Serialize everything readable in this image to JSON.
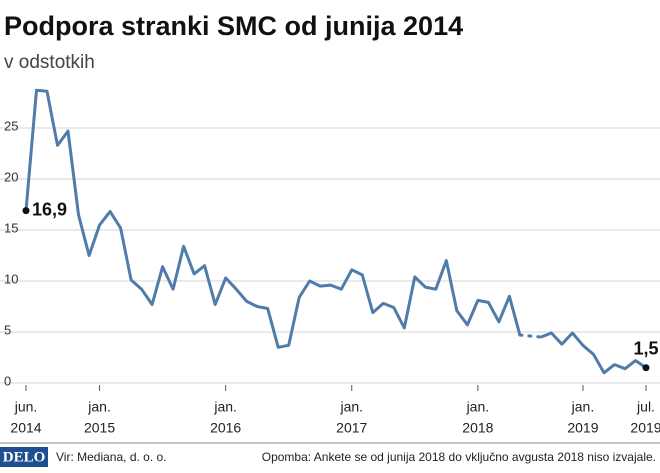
{
  "chart_data": {
    "type": "line",
    "title": "Podpora stranki SMC od junija 2014",
    "subtitle": "v odstotkih",
    "categories": [
      [
        "jun.",
        "2014"
      ],
      null,
      null,
      null,
      null,
      null,
      null,
      [
        "jan.",
        "2015"
      ],
      null,
      null,
      null,
      null,
      null,
      null,
      null,
      null,
      null,
      null,
      null,
      [
        "jan.",
        "2016"
      ],
      null,
      null,
      null,
      null,
      null,
      null,
      null,
      null,
      null,
      null,
      null,
      [
        "jan.",
        "2017"
      ],
      null,
      null,
      null,
      null,
      null,
      null,
      null,
      null,
      null,
      null,
      null,
      [
        "jan.",
        "2018"
      ],
      null,
      null,
      null,
      null,
      null,
      null,
      null,
      null,
      null,
      [
        "jan.",
        "2019"
      ],
      null,
      null,
      null,
      null,
      null,
      [
        "jul.",
        "2019"
      ]
    ],
    "values": [
      16.9,
      28.7,
      28.6,
      23.3,
      24.7,
      16.5,
      12.5,
      15.5,
      16.8,
      15.2,
      10.1,
      9.2,
      7.7,
      11.4,
      9.2,
      13.4,
      10.7,
      11.5,
      7.7,
      10.3,
      9.2,
      8.0,
      7.5,
      7.3,
      3.5,
      3.7,
      8.4,
      10.0,
      9.5,
      9.6,
      9.2,
      11.1,
      10.6,
      6.9,
      7.8,
      7.4,
      5.4,
      10.4,
      9.4,
      9.2,
      12.0,
      7.1,
      5.7,
      8.1,
      7.9,
      6.0,
      8.5,
      4.7,
      null,
      4.5,
      4.9,
      3.8,
      4.9,
      3.7,
      2.8,
      1.0,
      1.8,
      1.4,
      2.2,
      1.5
    ],
    "value_labels": [
      "16,9",
      null,
      null,
      null,
      null,
      null,
      null,
      null,
      null,
      null,
      null,
      null,
      null,
      null,
      null,
      null,
      null,
      null,
      null,
      null,
      null,
      null,
      null,
      null,
      null,
      null,
      null,
      null,
      null,
      null,
      null,
      null,
      null,
      null,
      null,
      null,
      null,
      null,
      null,
      null,
      null,
      null,
      null,
      null,
      null,
      null,
      null,
      null,
      null,
      null,
      null,
      null,
      null,
      null,
      null,
      null,
      null,
      null,
      null,
      "1,5"
    ],
    "color": "#4f7ca8",
    "ylim": [
      0,
      30
    ],
    "yticks": [
      0,
      5,
      10,
      15,
      20,
      25
    ],
    "grid": true,
    "source": "Vir: Mediana, d. o. o.",
    "logo": "DELO",
    "note": "Opomba: Ankete se od junija 2018 do vključno avgusta 2018 niso izvajale."
  }
}
